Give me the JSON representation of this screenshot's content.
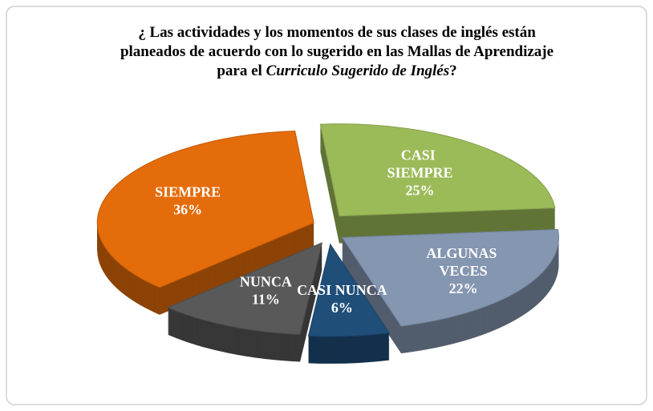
{
  "chart_data": {
    "type": "pie3d",
    "title_lines": [
      [
        {
          "text": "¿ Las actividades y los momentos de sus clases de inglés están"
        }
      ],
      [
        {
          "text": "planeados de acuerdo  con lo sugerido en las Mallas de Aprendizaje"
        }
      ],
      [
        {
          "text": "para el "
        },
        {
          "text": "Curriculo Sugerido de Inglés",
          "italic": true
        },
        {
          "text": "?"
        }
      ]
    ],
    "categories": [
      "CASI SIEMPRE",
      "ALGUNAS VECES",
      "CASI NUNCA",
      "NUNCA",
      "SIEMPRE"
    ],
    "values": [
      25,
      22,
      6,
      11,
      36
    ],
    "value_labels": [
      "25%",
      "22%",
      "6%",
      "11%",
      "36%"
    ],
    "colors": [
      "#9bbb59",
      "#8496b0",
      "#1f4e79",
      "#595959",
      "#e46c0a"
    ]
  }
}
